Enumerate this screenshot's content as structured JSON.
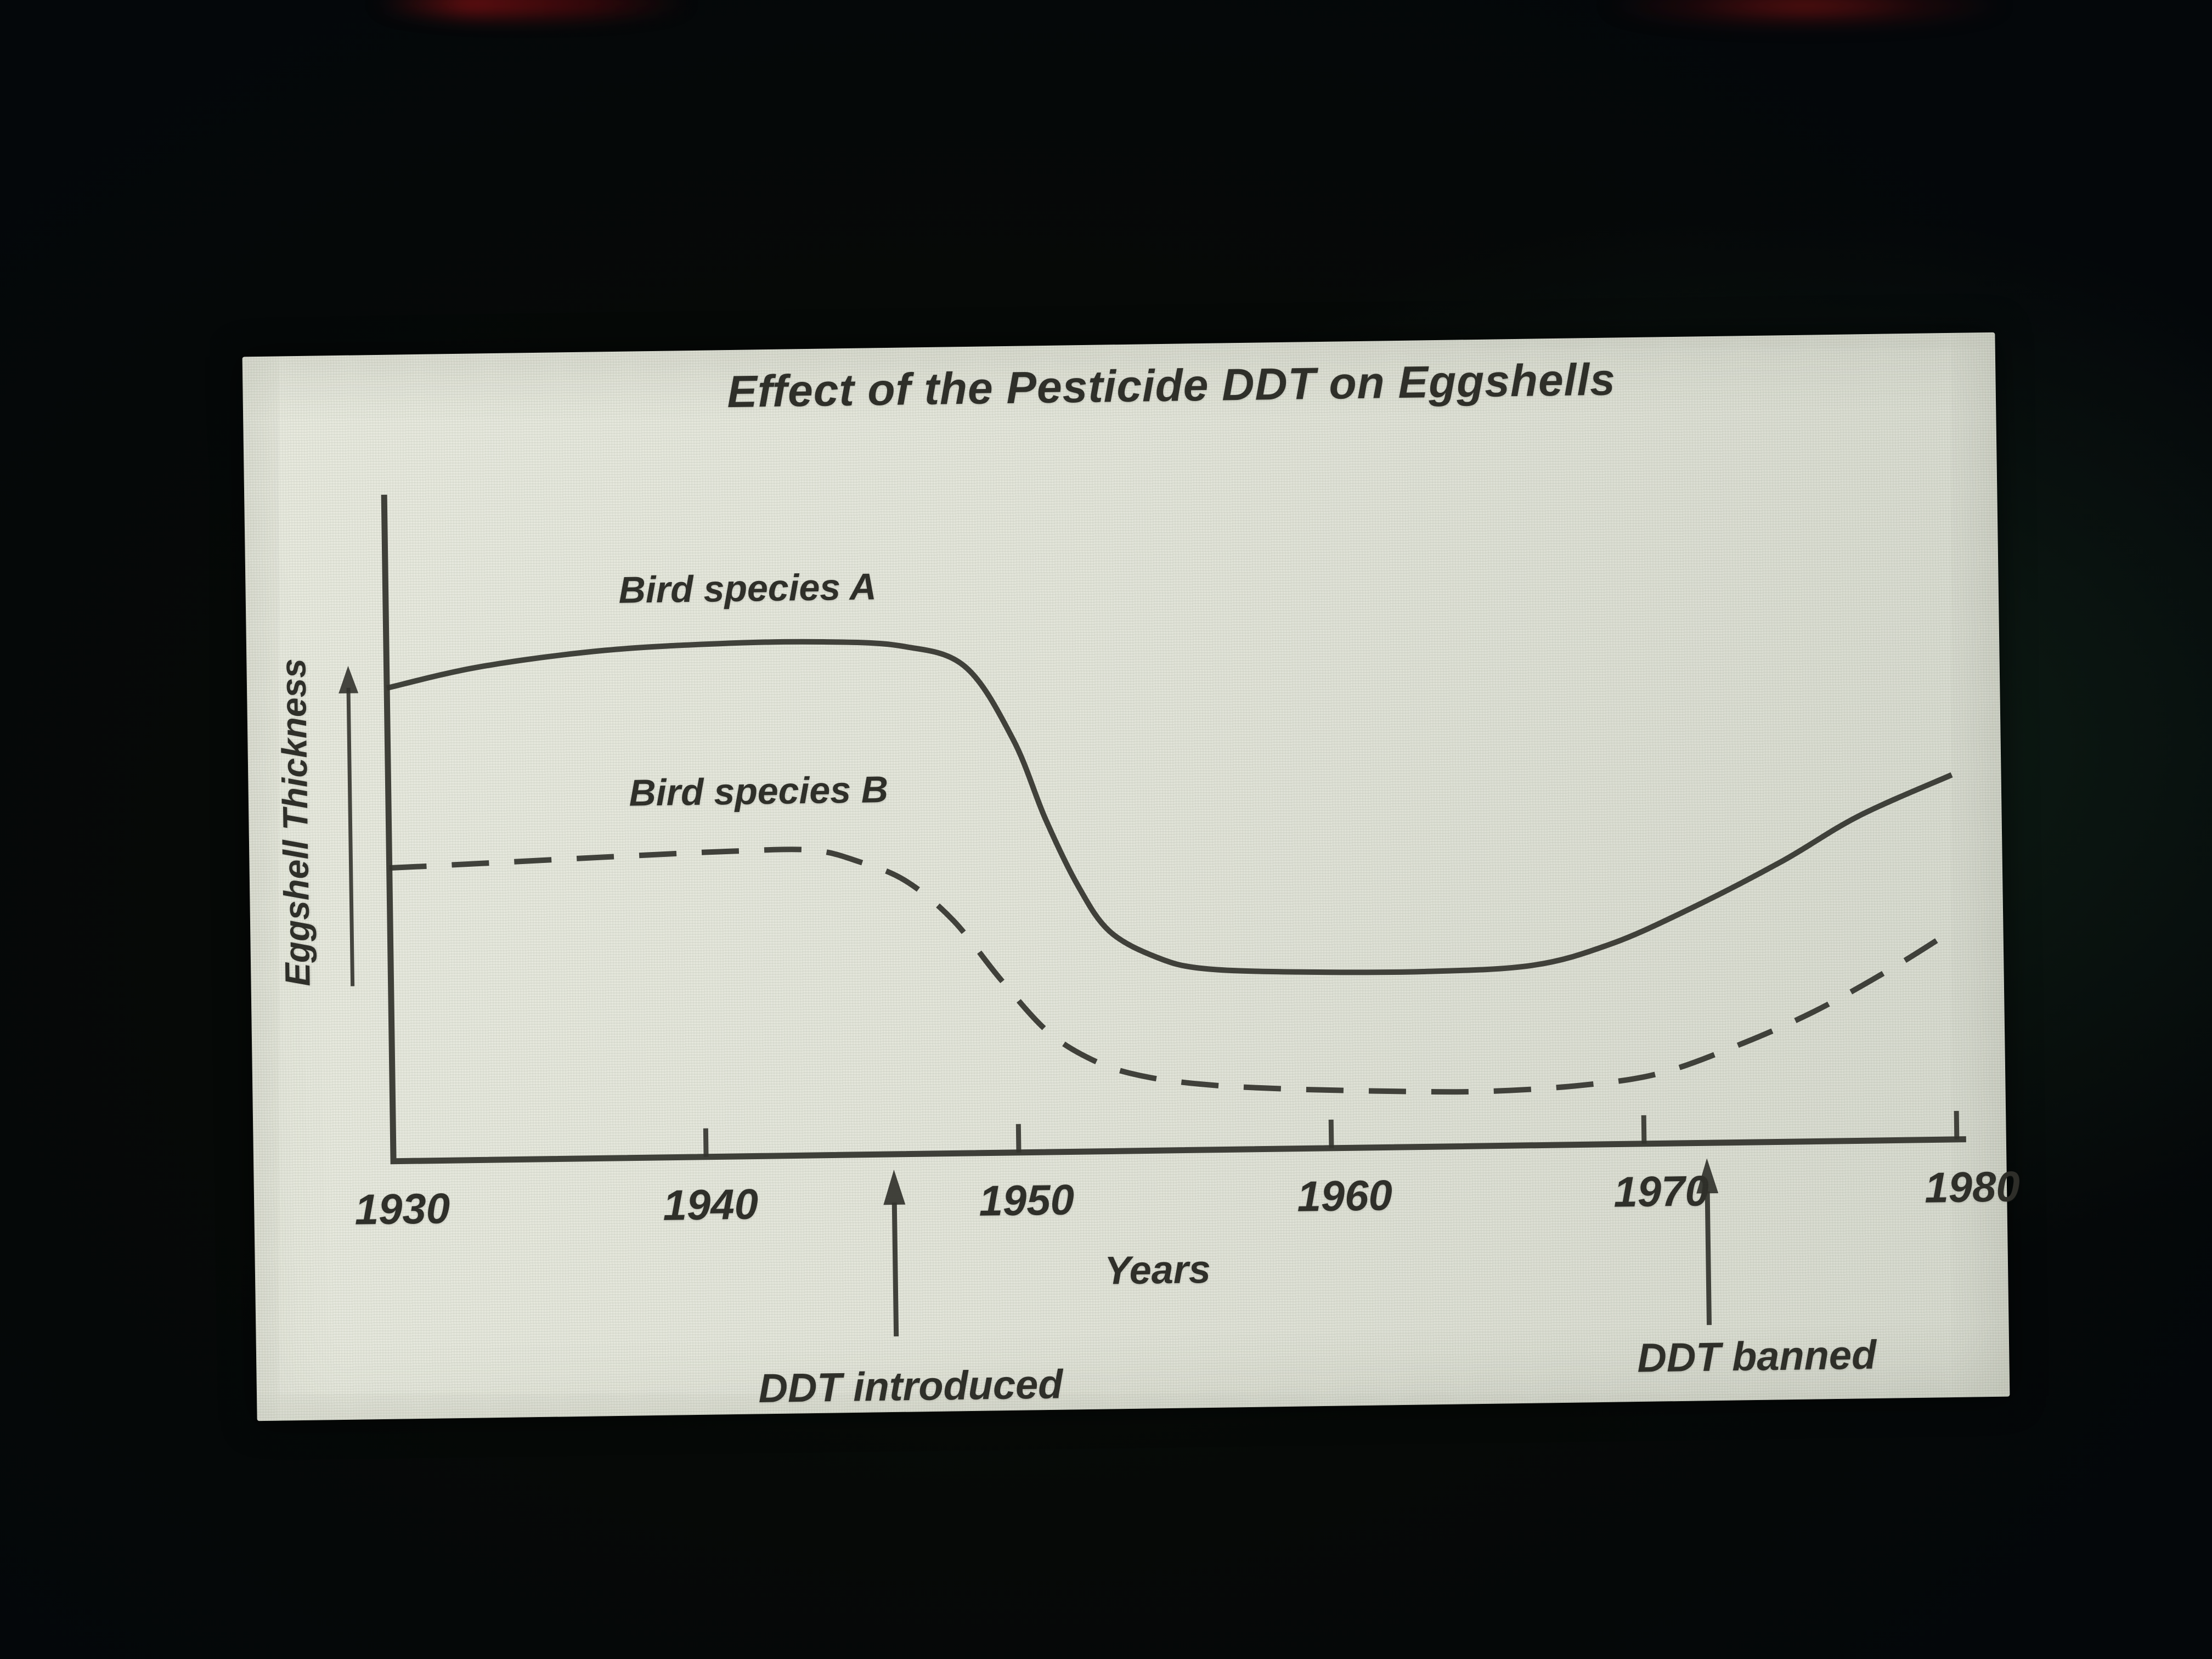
{
  "chart_data": {
    "type": "line",
    "title": "Effect of the Pesticide DDT on Eggshells",
    "xlabel": "Years",
    "ylabel": "Eggshell Thickness",
    "x_ticks": [
      "1930",
      "1940",
      "1950",
      "1960",
      "1970",
      "1980"
    ],
    "x_range": [
      1930,
      1980
    ],
    "y_range": [
      0,
      1
    ],
    "y_axis_note": "unlabeled relative scale; arrow indicates increasing thickness",
    "grid": false,
    "legend_position": "inline-labels-above-curves",
    "ink_color": "#32322c",
    "screen_color": "#e3e5da",
    "series": [
      {
        "name": "Bird species A",
        "style": "solid",
        "points": [
          [
            1930,
            0.71
          ],
          [
            1933,
            0.74
          ],
          [
            1937,
            0.762
          ],
          [
            1941,
            0.77
          ],
          [
            1944,
            0.77
          ],
          [
            1946.5,
            0.762
          ],
          [
            1948.5,
            0.73
          ],
          [
            1950,
            0.62
          ],
          [
            1951,
            0.5
          ],
          [
            1952,
            0.4
          ],
          [
            1953,
            0.33
          ],
          [
            1954.5,
            0.29
          ],
          [
            1956,
            0.272
          ],
          [
            1959,
            0.265
          ],
          [
            1963,
            0.263
          ],
          [
            1966.5,
            0.27
          ],
          [
            1969,
            0.3
          ],
          [
            1971.5,
            0.35
          ],
          [
            1974.5,
            0.42
          ],
          [
            1977,
            0.487
          ],
          [
            1980,
            0.547
          ]
        ]
      },
      {
        "name": "Bird species B",
        "style": "dashed",
        "points": [
          [
            1930,
            0.44
          ],
          [
            1933,
            0.445
          ],
          [
            1937,
            0.452
          ],
          [
            1941,
            0.458
          ],
          [
            1943.5,
            0.458
          ],
          [
            1945,
            0.44
          ],
          [
            1946.5,
            0.41
          ],
          [
            1948,
            0.35
          ],
          [
            1949.5,
            0.26
          ],
          [
            1951,
            0.18
          ],
          [
            1952.5,
            0.135
          ],
          [
            1954,
            0.112
          ],
          [
            1956,
            0.098
          ],
          [
            1958.5,
            0.09
          ],
          [
            1962,
            0.084
          ],
          [
            1965,
            0.082
          ],
          [
            1968,
            0.089
          ],
          [
            1970.5,
            0.105
          ],
          [
            1973,
            0.145
          ],
          [
            1975.5,
            0.195
          ],
          [
            1978,
            0.258
          ],
          [
            1980,
            0.315
          ]
        ]
      }
    ],
    "annotations": [
      {
        "label": "DDT introduced",
        "x": 1946
      },
      {
        "label": "DDT banned",
        "x": 1972
      }
    ]
  }
}
